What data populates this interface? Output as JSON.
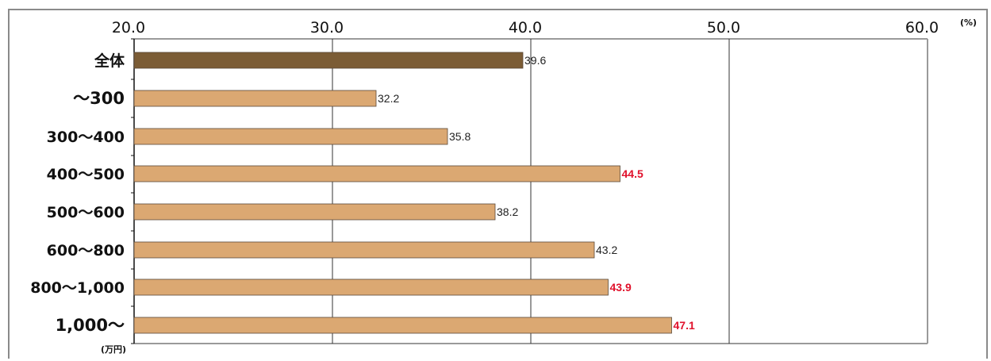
{
  "chart_data": {
    "type": "bar",
    "orientation": "horizontal",
    "categories": [
      "全体",
      "～300",
      "300～400",
      "400～500",
      "500～600",
      "600～800",
      "800～1,000",
      "1,000～"
    ],
    "values": [
      39.6,
      32.2,
      35.8,
      44.5,
      38.2,
      43.2,
      43.9,
      47.1
    ],
    "value_labels": [
      "39.6",
      "32.2",
      "35.8",
      "44.5",
      "38.2",
      "43.2",
      "43.9",
      "47.1"
    ],
    "highlighted": [
      false,
      false,
      false,
      true,
      false,
      false,
      true,
      true
    ],
    "xlim": [
      20.0,
      60.0
    ],
    "x_ticks": [
      "20.0",
      "30.0",
      "40.0",
      "50.0",
      "60.0"
    ],
    "x_unit": "(%)",
    "y_unit": "(万円)",
    "grid": "vertical",
    "colors": {
      "total_bar": "#7b5c35",
      "bar": "#dba872",
      "highlight_text": "#e0112b",
      "normal_text": "#222222",
      "gridline": "#333333",
      "frame": "#8a8a8a"
    }
  }
}
